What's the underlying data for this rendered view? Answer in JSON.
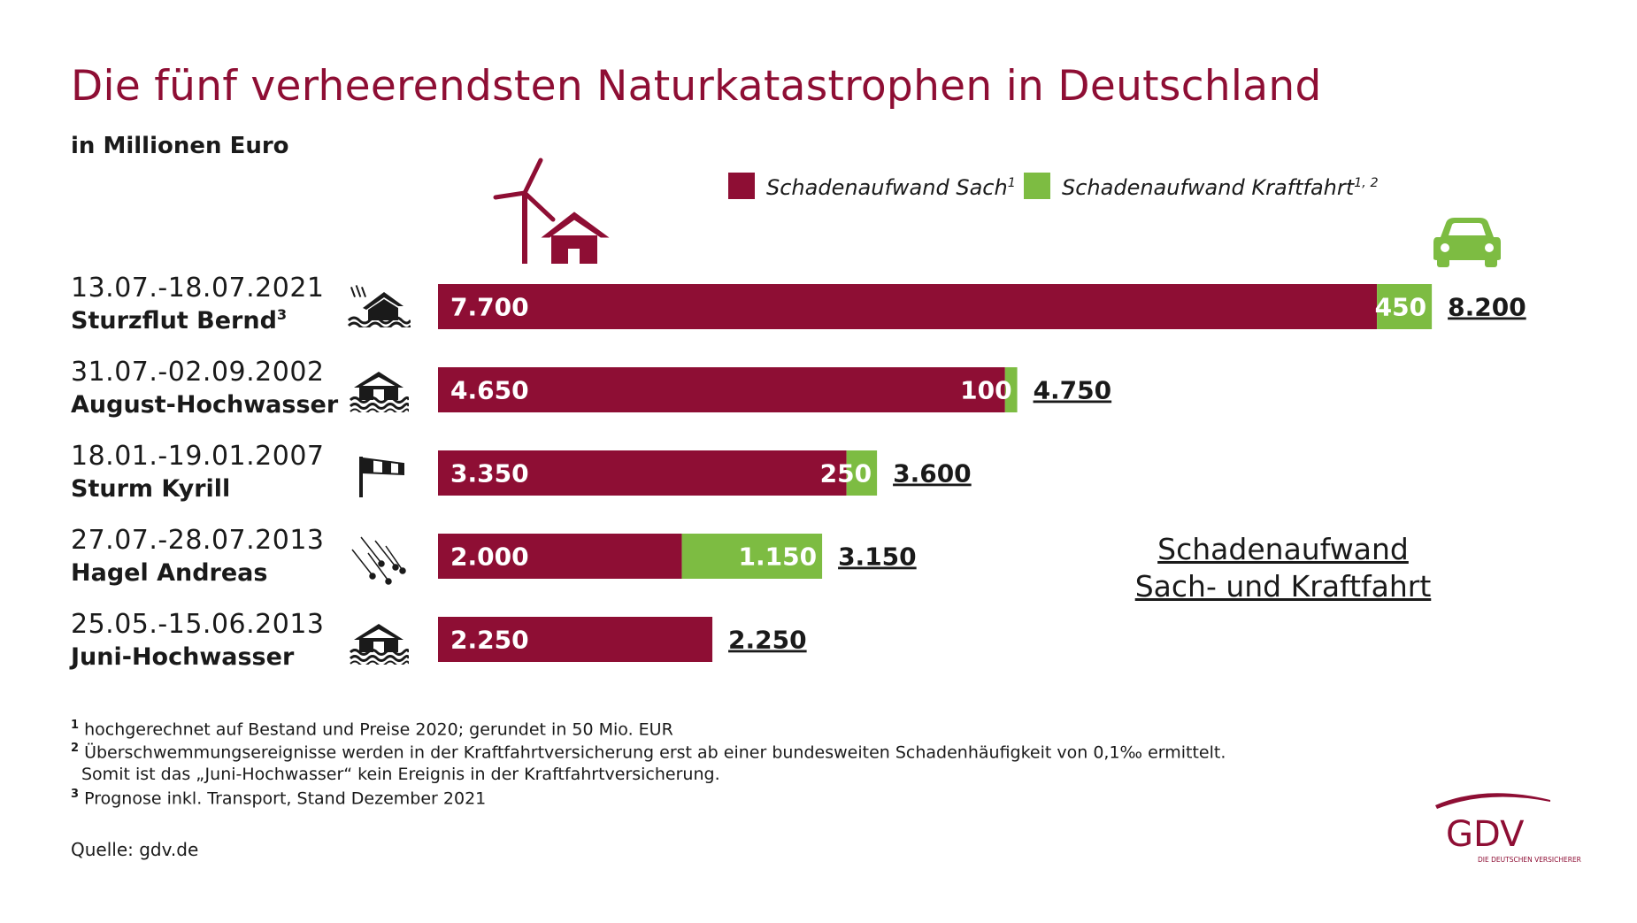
{
  "title": "Die fünf verheerendsten Naturkatastrophen in Deutschland",
  "subtitle": "in Millionen Euro",
  "legend": {
    "sach": "Schadenaufwand Sach",
    "sach_sup": "1",
    "kfz": "Schadenaufwand Kraftfahrt",
    "kfz_sup": "1, 2"
  },
  "colors": {
    "sach": "#8e0e34",
    "kfz": "#7dbc42",
    "title": "#8e0e34"
  },
  "events": [
    {
      "date": "13.07.-18.07.2021",
      "name": "Sturzflut Bernd",
      "name_sup": "3",
      "icon": "flooded-house-icon",
      "sach_label": "7.700",
      "kfz_label": "450",
      "total_label": "8.200"
    },
    {
      "date": "31.07.-02.09.2002",
      "name": "August-Hochwasser",
      "name_sup": "",
      "icon": "flood-house-icon",
      "sach_label": "4.650",
      "kfz_label": "100",
      "total_label": "4.750"
    },
    {
      "date": "18.01.-19.01.2007",
      "name": "Sturm Kyrill",
      "name_sup": "",
      "icon": "windsock-icon",
      "sach_label": "3.350",
      "kfz_label": "250",
      "total_label": "3.600"
    },
    {
      "date": "27.07.-28.07.2013",
      "name": "Hagel Andreas",
      "name_sup": "",
      "icon": "hail-icon",
      "sach_label": "2.000",
      "kfz_label": "1.150",
      "total_label": "3.150"
    },
    {
      "date": "25.05.-15.06.2013",
      "name": "Juni-Hochwasser",
      "name_sup": "",
      "icon": "flood-house-icon",
      "sach_label": "2.250",
      "kfz_label": "",
      "total_label": "2.250"
    }
  ],
  "chart_data": {
    "type": "bar",
    "orientation": "horizontal",
    "stacked": true,
    "title": "Die fünf verheerendsten Naturkatastrophen in Deutschland",
    "unit": "in Millionen Euro",
    "categories": [
      "Sturzflut Bernd",
      "August-Hochwasser",
      "Sturm Kyrill",
      "Hagel Andreas",
      "Juni-Hochwasser"
    ],
    "series": [
      {
        "name": "Schadenaufwand Sach",
        "values": [
          7700,
          4650,
          3350,
          2000,
          2250
        ]
      },
      {
        "name": "Schadenaufwand Kraftfahrt",
        "values": [
          450,
          100,
          250,
          1150,
          0
        ]
      }
    ],
    "totals": [
      8200,
      4750,
      3600,
      3150,
      2250
    ],
    "xlim": [
      0,
      8200
    ],
    "legend": "top",
    "grid": false
  },
  "annotation": {
    "line1": "Schadenaufwand",
    "line2": "Sach- und Kraftfahrt"
  },
  "footnotes": [
    {
      "mark": "1",
      "text": "hochgerechnet auf Bestand und Preise 2020; gerundet in 50 Mio. EUR"
    },
    {
      "mark": "2",
      "text": "Überschwemmungsereignisse werden in der Kraftfahrtversicherung erst ab einer bundesweiten Schadenhäufigkeit von 0,1‰ ermittelt."
    },
    {
      "mark": "",
      "text": "Somit ist das „Juni-Hochwasser“ kein Ereignis in der Kraftfahrtversicherung."
    },
    {
      "mark": "3",
      "text": "Prognose inkl. Transport, Stand Dezember 2021"
    }
  ],
  "source": "Quelle: gdv.de",
  "logo": {
    "text": "GDV",
    "tagline": "DIE DEUTSCHEN VERSICHERER"
  }
}
